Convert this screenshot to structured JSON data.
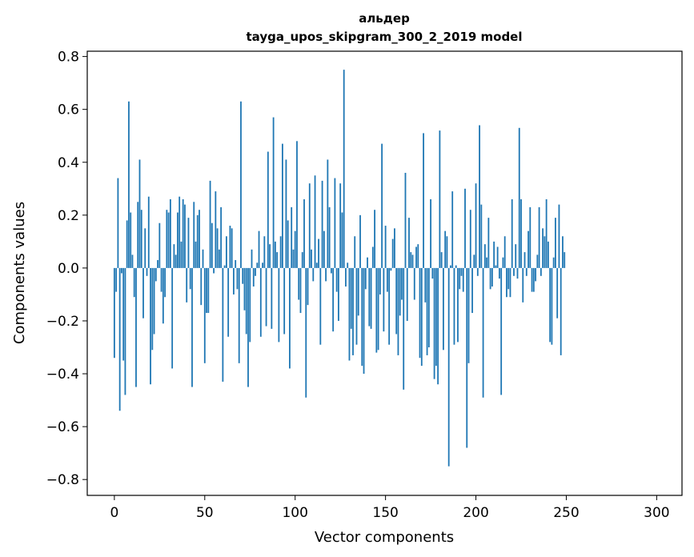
{
  "chart_data": {
    "type": "bar",
    "title": "альдер",
    "subtitle": "tayga_upos_skipgram_300_2_2019 model",
    "xlabel": "Vector components",
    "ylabel": "Components values",
    "xlim": [
      -15,
      314
    ],
    "ylim": [
      -0.86,
      0.82
    ],
    "x_ticks": [
      0,
      50,
      100,
      150,
      200,
      250,
      300
    ],
    "y_ticks": [
      0.8,
      0.6,
      0.4,
      0.2,
      0.0,
      -0.2,
      -0.4,
      -0.6,
      -0.8
    ],
    "y_tick_labels": [
      "0.8",
      "0.6",
      "0.4",
      "0.2",
      "0.0",
      "−0.2",
      "−0.4",
      "−0.6",
      "−0.8"
    ],
    "bar_color": "#1f77b4",
    "grid": false,
    "values": [
      -0.34,
      -0.09,
      0.34,
      -0.54,
      -0.02,
      -0.35,
      -0.48,
      0.18,
      0.63,
      0.21,
      0.05,
      -0.11,
      -0.45,
      0.25,
      0.41,
      0.22,
      -0.19,
      0.15,
      -0.03,
      0.27,
      -0.44,
      -0.31,
      -0.25,
      -0.05,
      0.03,
      0.17,
      -0.09,
      -0.21,
      -0.11,
      0.22,
      0.21,
      0.26,
      -0.38,
      0.09,
      0.05,
      0.21,
      0.27,
      0.1,
      0.26,
      0.24,
      -0.13,
      0.19,
      -0.08,
      -0.45,
      0.25,
      0.1,
      0.2,
      0.22,
      -0.14,
      0.07,
      -0.36,
      -0.17,
      -0.17,
      0.33,
      0.17,
      -0.02,
      0.29,
      0.15,
      0.07,
      0.23,
      -0.43,
      0.01,
      0.12,
      -0.26,
      0.16,
      0.15,
      -0.1,
      0.03,
      -0.08,
      -0.36,
      0.63,
      -0.06,
      -0.16,
      -0.25,
      -0.45,
      -0.28,
      0.07,
      -0.07,
      -0.03,
      0.02,
      0.14,
      -0.26,
      0.02,
      0.12,
      -0.22,
      0.44,
      0.09,
      -0.23,
      0.57,
      0.1,
      0.06,
      -0.28,
      0.12,
      0.47,
      -0.25,
      0.41,
      0.18,
      -0.38,
      0.23,
      0.07,
      0.14,
      0.48,
      -0.12,
      -0.17,
      0.06,
      0.26,
      -0.49,
      -0.14,
      0.32,
      0.07,
      -0.05,
      0.35,
      0.02,
      0.11,
      -0.29,
      0.33,
      0.14,
      -0.05,
      0.41,
      0.23,
      -0.02,
      -0.24,
      0.34,
      -0.09,
      -0.2,
      0.32,
      0.21,
      0.75,
      -0.07,
      0.02,
      -0.35,
      -0.23,
      -0.33,
      0.12,
      -0.29,
      -0.18,
      0.2,
      -0.37,
      -0.4,
      -0.08,
      0.04,
      -0.22,
      -0.23,
      0.08,
      0.22,
      -0.32,
      -0.31,
      -0.1,
      0.47,
      -0.24,
      0.16,
      -0.09,
      -0.29,
      -0.01,
      0.11,
      0.15,
      -0.25,
      -0.33,
      -0.18,
      -0.12,
      -0.46,
      0.36,
      -0.2,
      0.19,
      0.06,
      0.05,
      -0.12,
      0.08,
      0.09,
      -0.34,
      -0.37,
      0.51,
      -0.13,
      -0.33,
      -0.3,
      0.26,
      -0.04,
      -0.42,
      -0.37,
      -0.44,
      0.52,
      0.06,
      -0.31,
      0.14,
      0.12,
      -0.75,
      0.01,
      0.29,
      -0.29,
      0.01,
      -0.28,
      -0.08,
      -0.03,
      -0.09,
      0.3,
      -0.68,
      -0.36,
      0.22,
      -0.17,
      0.05,
      0.32,
      -0.03,
      0.54,
      0.24,
      -0.49,
      0.09,
      0.04,
      0.19,
      -0.08,
      -0.07,
      0.1,
      0.01,
      0.08,
      -0.04,
      -0.48,
      0.04,
      0.12,
      -0.11,
      -0.08,
      -0.11,
      0.26,
      -0.03,
      0.09,
      -0.04,
      0.53,
      0.26,
      -0.13,
      0.06,
      -0.03,
      0.14,
      0.23,
      -0.09,
      -0.09,
      -0.05,
      0.05,
      0.23,
      -0.03,
      0.15,
      0.12,
      0.26,
      0.1,
      -0.28,
      -0.29,
      0.04,
      0.19,
      -0.19,
      0.24,
      -0.33,
      0.12,
      0.06
    ]
  }
}
